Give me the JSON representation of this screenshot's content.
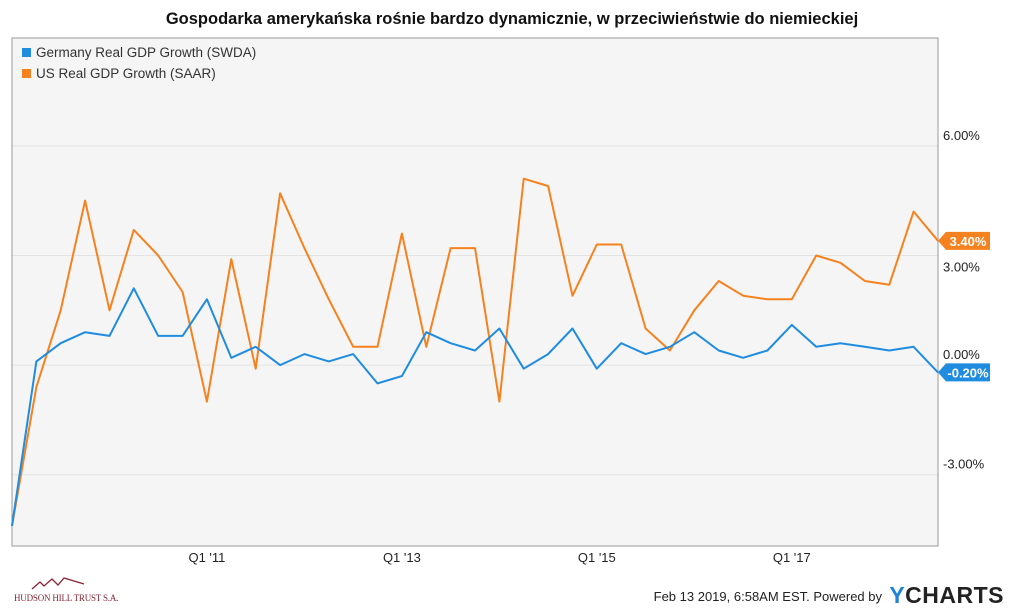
{
  "title": "Gospodarka amerykańska rośnie bardzo dynamicznie, w przeciwieństwie do niemieckiej",
  "footer": {
    "timestamp": "Feb 13 2019, 6:58AM EST.  Powered by",
    "brand_y": "Y",
    "brand_rest": "CHARTS",
    "logo_text": "HUDSON HILL TRUST S.A."
  },
  "chart_data": {
    "type": "line",
    "title": "Gospodarka amerykańska rośnie bardzo dynamicznie, w przeciwieństwie do niemieckiej",
    "xlabel": "",
    "ylabel": "",
    "x_start": "Q1 '09",
    "x_ticks": [
      {
        "label": "Q1 '11",
        "index": 8
      },
      {
        "label": "Q1 '13",
        "index": 16
      },
      {
        "label": "Q1 '15",
        "index": 24
      },
      {
        "label": "Q1 '17",
        "index": 32
      }
    ],
    "y_ticks": [
      {
        "label": "6.00%",
        "value": 6
      },
      {
        "label": "3.00%",
        "value": 3
      },
      {
        "label": "0.00%",
        "value": 0
      },
      {
        "label": "-3.00%",
        "value": -3
      }
    ],
    "ylim": [
      -4.95,
      8.95
    ],
    "grid": true,
    "legend_position": "top-left",
    "series": [
      {
        "name": "Germany Real GDP Growth (SWDA)",
        "color": "#1f8ce0",
        "last_label": "-0.20%",
        "values": [
          -4.4,
          0.1,
          0.6,
          0.9,
          0.8,
          2.1,
          0.8,
          0.8,
          1.8,
          0.2,
          0.5,
          0.0,
          0.3,
          0.1,
          0.3,
          -0.5,
          -0.3,
          0.9,
          0.6,
          0.4,
          1.0,
          -0.1,
          0.3,
          1.0,
          -0.1,
          0.6,
          0.3,
          0.5,
          0.9,
          0.4,
          0.2,
          0.4,
          1.1,
          0.5,
          0.6,
          0.5,
          0.4,
          0.5,
          -0.2
        ]
      },
      {
        "name": "US Real GDP Growth (SAAR)",
        "color": "#f5821f",
        "last_label": "3.40%",
        "values": [
          -4.4,
          -0.6,
          1.5,
          4.5,
          1.5,
          3.7,
          3.0,
          2.0,
          -1.0,
          2.9,
          -0.1,
          4.7,
          3.2,
          1.8,
          0.5,
          0.5,
          3.6,
          0.5,
          3.2,
          3.2,
          -1.0,
          5.1,
          4.9,
          1.9,
          3.3,
          3.3,
          1.0,
          0.4,
          1.5,
          2.3,
          1.9,
          1.8,
          1.8,
          3.0,
          2.8,
          2.3,
          2.2,
          4.2,
          3.4
        ]
      }
    ]
  }
}
